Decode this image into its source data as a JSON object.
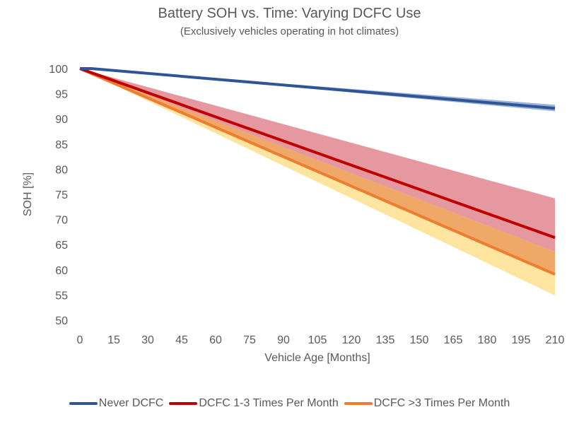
{
  "chart_data": {
    "type": "line",
    "title": "Battery SOH vs. Time: Varying DCFC Use",
    "subtitle": "(Exclusively vehicles operating in hot climates)",
    "xlabel": "Vehicle Age [Months]",
    "ylabel": "SOH [%]",
    "xlim": [
      0,
      210
    ],
    "ylim": [
      50,
      100
    ],
    "x_ticks": [
      "0",
      "15",
      "30",
      "45",
      "60",
      "75",
      "90",
      "105",
      "120",
      "135",
      "150",
      "165",
      "180",
      "195",
      "210"
    ],
    "y_ticks": [
      "50",
      "55",
      "60",
      "65",
      "70",
      "75",
      "80",
      "85",
      "90",
      "95",
      "100"
    ],
    "grid": false,
    "legend_position": "bottom",
    "series": [
      {
        "name": "Never DCFC",
        "color": "#2F5597",
        "band_color": "#9DB3D8",
        "x": [
          0,
          5,
          210
        ],
        "y": [
          100,
          100,
          92.1
        ],
        "band_upper": [
          100,
          100,
          92.8
        ],
        "band_lower": [
          100,
          100,
          91.5
        ]
      },
      {
        "name": "DCFC 1-3 Times Per Month",
        "color": "#C00000",
        "band_color": "#E0868E",
        "x": [
          0,
          210
        ],
        "y": [
          100,
          66.4
        ],
        "band_upper": [
          100,
          74.2
        ],
        "band_lower": [
          100,
          63.6
        ]
      },
      {
        "name": "DCFC >3 Times Per Month",
        "color": "#ED7D31",
        "band_color": "#F0A868",
        "lower_band_color": "#FDE5A0",
        "x": [
          0,
          210
        ],
        "y": [
          100,
          59.1
        ],
        "band_upper": [
          100,
          63.6
        ],
        "band_lower": [
          100,
          54.9
        ]
      }
    ]
  }
}
